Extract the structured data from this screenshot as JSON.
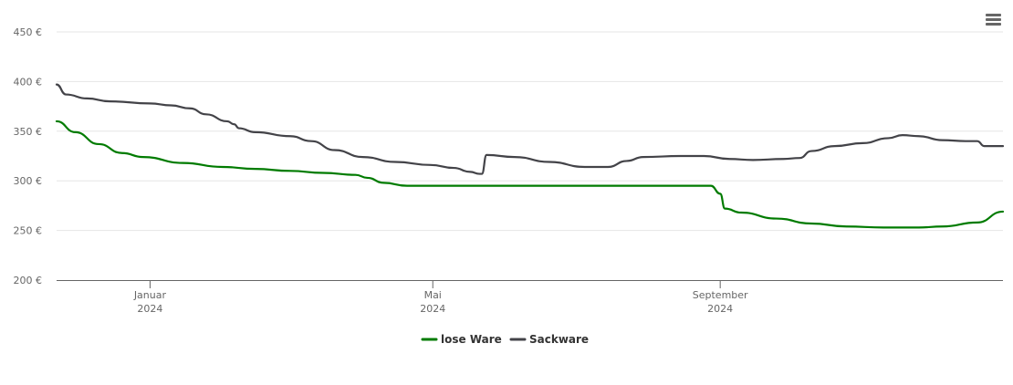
{
  "chart_data": {
    "type": "line",
    "x_axis": {
      "ticks": [
        {
          "date": "2024-01-01",
          "label": "Januar",
          "year": "2024"
        },
        {
          "date": "2024-05-01",
          "label": "Mai",
          "year": "2024"
        },
        {
          "date": "2024-09-01",
          "label": "September",
          "year": "2024"
        }
      ],
      "range": [
        "2023-11-22",
        "2024-12-31"
      ]
    },
    "y_axis": {
      "ticks": [
        {
          "value": 200,
          "label": "200 €"
        },
        {
          "value": 250,
          "label": "250 €"
        },
        {
          "value": 300,
          "label": "300 €"
        },
        {
          "value": 350,
          "label": "350 €"
        },
        {
          "value": 400,
          "label": "400 €"
        },
        {
          "value": 450,
          "label": "450 €"
        }
      ],
      "ylim": [
        200,
        450
      ],
      "grid": true
    },
    "legend_position": "bottom-center",
    "series": [
      {
        "name": "lose Ware",
        "color": "#007b00",
        "points": [
          [
            "2023-11-22",
            360
          ],
          [
            "2023-11-30",
            349
          ],
          [
            "2023-12-10",
            337
          ],
          [
            "2023-12-20",
            328
          ],
          [
            "2023-12-29",
            324
          ],
          [
            "2024-01-15",
            318
          ],
          [
            "2024-02-01",
            314
          ],
          [
            "2024-02-15",
            312
          ],
          [
            "2024-03-01",
            310
          ],
          [
            "2024-03-15",
            308
          ],
          [
            "2024-03-29",
            306
          ],
          [
            "2024-04-03",
            303
          ],
          [
            "2024-04-10",
            298
          ],
          [
            "2024-04-20",
            295
          ],
          [
            "2024-05-15",
            295
          ],
          [
            "2024-06-15",
            295
          ],
          [
            "2024-07-15",
            295
          ],
          [
            "2024-08-15",
            295
          ],
          [
            "2024-08-28",
            295
          ],
          [
            "2024-09-01",
            287
          ],
          [
            "2024-09-03",
            272
          ],
          [
            "2024-09-10",
            268
          ],
          [
            "2024-09-25",
            262
          ],
          [
            "2024-10-10",
            257
          ],
          [
            "2024-10-25",
            254
          ],
          [
            "2024-11-10",
            253
          ],
          [
            "2024-11-25",
            253
          ],
          [
            "2024-12-05",
            254
          ],
          [
            "2024-12-20",
            258
          ],
          [
            "2024-12-31",
            269
          ]
        ]
      },
      {
        "name": "Sackware",
        "color": "#434348",
        "points": [
          [
            "2023-11-22",
            397
          ],
          [
            "2023-11-26",
            387
          ],
          [
            "2023-12-05",
            383
          ],
          [
            "2023-12-15",
            380
          ],
          [
            "2024-01-01",
            378
          ],
          [
            "2024-01-10",
            376
          ],
          [
            "2024-01-18",
            373
          ],
          [
            "2024-01-25",
            367
          ],
          [
            "2024-02-03",
            360
          ],
          [
            "2024-02-06",
            357
          ],
          [
            "2024-02-08",
            353
          ],
          [
            "2024-02-15",
            349
          ],
          [
            "2024-03-01",
            345
          ],
          [
            "2024-03-10",
            340
          ],
          [
            "2024-03-20",
            331
          ],
          [
            "2024-04-01",
            324
          ],
          [
            "2024-04-15",
            319
          ],
          [
            "2024-04-30",
            316
          ],
          [
            "2024-05-10",
            313
          ],
          [
            "2024-05-17",
            309
          ],
          [
            "2024-05-21",
            307
          ],
          [
            "2024-05-22",
            307
          ],
          [
            "2024-05-24",
            326
          ],
          [
            "2024-06-05",
            324
          ],
          [
            "2024-06-20",
            319
          ],
          [
            "2024-07-05",
            314
          ],
          [
            "2024-07-15",
            314
          ],
          [
            "2024-07-23",
            320
          ],
          [
            "2024-07-30",
            324
          ],
          [
            "2024-08-15",
            325
          ],
          [
            "2024-08-25",
            325
          ],
          [
            "2024-09-05",
            322
          ],
          [
            "2024-09-15",
            321
          ],
          [
            "2024-09-28",
            322
          ],
          [
            "2024-10-05",
            323
          ],
          [
            "2024-10-10",
            330
          ],
          [
            "2024-10-20",
            335
          ],
          [
            "2024-11-01",
            338
          ],
          [
            "2024-11-12",
            343
          ],
          [
            "2024-11-18",
            346
          ],
          [
            "2024-11-25",
            345
          ],
          [
            "2024-12-05",
            341
          ],
          [
            "2024-12-15",
            340
          ],
          [
            "2024-12-20",
            340
          ],
          [
            "2024-12-23",
            335
          ],
          [
            "2024-12-31",
            335
          ]
        ]
      }
    ]
  },
  "menu": {
    "icon": "hamburger-menu-icon"
  }
}
